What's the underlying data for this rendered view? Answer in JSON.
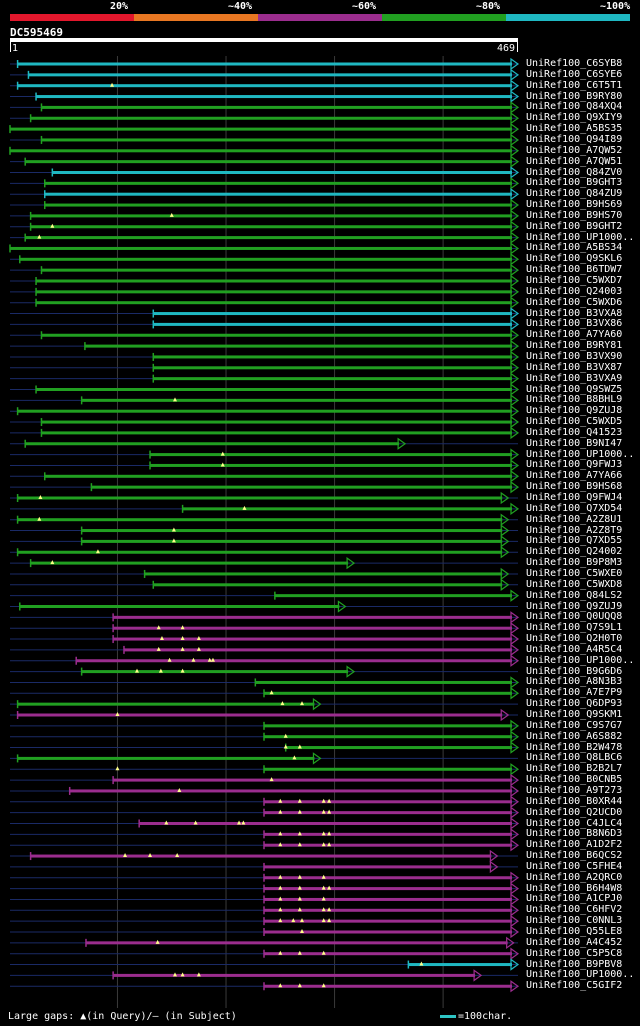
{
  "legend": {
    "bands": [
      {
        "label": "20%",
        "color": "#e2172c"
      },
      {
        "label": "~40%",
        "color": "#e87722"
      },
      {
        "label": "~60%",
        "color": "#9b2d8e"
      },
      {
        "label": "~80%",
        "color": "#21a021"
      },
      {
        "label": "~100%",
        "color": "#1fb8c2"
      }
    ]
  },
  "query": {
    "name": "DC595469",
    "start": "1",
    "end": "469"
  },
  "footer": {
    "text": "Large gaps: ▲(in Query)/– (in Subject)",
    "scale_text": "=100char."
  },
  "chart_data": {
    "type": "alignment-overview",
    "query_length": 469,
    "colors": {
      "cyan": "#1fb8c2",
      "green": "#21a021",
      "purple": "#9b2d8e",
      "backbone": "#1a2a66"
    },
    "hits": [
      {
        "label": "UniRef100_C6SYB8",
        "start": 8,
        "end": 469,
        "color": "cyan",
        "arrow": true,
        "dots": []
      },
      {
        "label": "UniRef100_C6SYE6",
        "start": 18,
        "end": 469,
        "color": "cyan",
        "arrow": true,
        "dots": []
      },
      {
        "label": "UniRef100_C6T5T1",
        "start": 8,
        "end": 469,
        "color": "cyan",
        "arrow": true,
        "dots": [
          95
        ]
      },
      {
        "label": "UniRef100_B9RY80",
        "start": 25,
        "end": 469,
        "color": "cyan",
        "arrow": true,
        "dots": []
      },
      {
        "label": "UniRef100_Q84XQ4",
        "start": 30,
        "end": 469,
        "color": "green",
        "arrow": true,
        "dots": []
      },
      {
        "label": "UniRef100_Q9XIY9",
        "start": 20,
        "end": 469,
        "color": "green",
        "arrow": true,
        "dots": []
      },
      {
        "label": "UniRef100_A5BS35",
        "start": 1,
        "end": 469,
        "color": "green",
        "arrow": true,
        "dots": []
      },
      {
        "label": "UniRef100_Q94I89",
        "start": 30,
        "end": 469,
        "color": "green",
        "arrow": true,
        "dots": []
      },
      {
        "label": "UniRef100_A7QW52",
        "start": 1,
        "end": 469,
        "color": "green",
        "arrow": true,
        "dots": []
      },
      {
        "label": "UniRef100_A7QW51",
        "start": 15,
        "end": 469,
        "color": "green",
        "arrow": true,
        "dots": []
      },
      {
        "label": "UniRef100_Q84ZV0",
        "start": 40,
        "end": 469,
        "color": "cyan",
        "arrow": true,
        "dots": []
      },
      {
        "label": "UniRef100_B9GHT3",
        "start": 33,
        "end": 469,
        "color": "green",
        "arrow": true,
        "dots": []
      },
      {
        "label": "UniRef100_Q84ZU9",
        "start": 33,
        "end": 469,
        "color": "cyan",
        "arrow": true,
        "dots": []
      },
      {
        "label": "UniRef100_B9HS69",
        "start": 33,
        "end": 469,
        "color": "green",
        "arrow": true,
        "dots": []
      },
      {
        "label": "UniRef100_B9HS70",
        "start": 20,
        "end": 469,
        "color": "green",
        "arrow": true,
        "dots": [
          150
        ]
      },
      {
        "label": "UniRef100_B9GHT2",
        "start": 20,
        "end": 469,
        "color": "green",
        "arrow": true,
        "dots": [
          40
        ]
      },
      {
        "label": "UniRef100_UP1000..",
        "start": 15,
        "end": 469,
        "color": "green",
        "arrow": true,
        "dots": [
          28
        ]
      },
      {
        "label": "UniRef100_A5BS34",
        "start": 1,
        "end": 469,
        "color": "green",
        "arrow": true,
        "dots": []
      },
      {
        "label": "UniRef100_Q9SKL6",
        "start": 10,
        "end": 469,
        "color": "green",
        "arrow": true,
        "dots": []
      },
      {
        "label": "UniRef100_B6TDW7",
        "start": 30,
        "end": 469,
        "color": "green",
        "arrow": true,
        "dots": []
      },
      {
        "label": "UniRef100_C5WXD7",
        "start": 25,
        "end": 469,
        "color": "green",
        "arrow": true,
        "dots": []
      },
      {
        "label": "UniRef100_Q24003",
        "start": 25,
        "end": 469,
        "color": "green",
        "arrow": true,
        "dots": []
      },
      {
        "label": "UniRef100_C5WXD6",
        "start": 25,
        "end": 469,
        "color": "green",
        "arrow": true,
        "dots": []
      },
      {
        "label": "UniRef100_B3VXA8",
        "start": 133,
        "end": 469,
        "color": "cyan",
        "arrow": true,
        "dots": []
      },
      {
        "label": "UniRef100_B3VX86",
        "start": 133,
        "end": 469,
        "color": "cyan",
        "arrow": true,
        "dots": []
      },
      {
        "label": "UniRef100_A7YA60",
        "start": 30,
        "end": 469,
        "color": "green",
        "arrow": true,
        "dots": []
      },
      {
        "label": "UniRef100_B9RY81",
        "start": 70,
        "end": 469,
        "color": "green",
        "arrow": true,
        "dots": []
      },
      {
        "label": "UniRef100_B3VX90",
        "start": 133,
        "end": 469,
        "color": "green",
        "arrow": true,
        "dots": []
      },
      {
        "label": "UniRef100_B3VX87",
        "start": 133,
        "end": 469,
        "color": "green",
        "arrow": true,
        "dots": []
      },
      {
        "label": "UniRef100_B3VXA9",
        "start": 133,
        "end": 469,
        "color": "green",
        "arrow": true,
        "dots": []
      },
      {
        "label": "UniRef100_Q9SWZ5",
        "start": 25,
        "end": 469,
        "color": "green",
        "arrow": true,
        "dots": []
      },
      {
        "label": "UniRef100_B8BHL9",
        "start": 67,
        "end": 469,
        "color": "green",
        "arrow": true,
        "dots": [
          153
        ]
      },
      {
        "label": "UniRef100_Q9ZUJ8",
        "start": 8,
        "end": 469,
        "color": "green",
        "arrow": true,
        "dots": []
      },
      {
        "label": "UniRef100_C5WXD5",
        "start": 30,
        "end": 469,
        "color": "green",
        "arrow": true,
        "dots": []
      },
      {
        "label": "UniRef100_Q41523",
        "start": 30,
        "end": 469,
        "color": "green",
        "arrow": true,
        "dots": []
      },
      {
        "label": "UniRef100_B9NI47",
        "start": 15,
        "end": 365,
        "color": "green",
        "arrow": true,
        "dots": []
      },
      {
        "label": "UniRef100_UP1000..",
        "start": 130,
        "end": 469,
        "color": "green",
        "arrow": true,
        "dots": [
          197
        ]
      },
      {
        "label": "UniRef100_Q9FWJ3",
        "start": 130,
        "end": 469,
        "color": "green",
        "arrow": true,
        "dots": [
          197
        ]
      },
      {
        "label": "UniRef100_A7YA66",
        "start": 33,
        "end": 469,
        "color": "green",
        "arrow": true,
        "dots": []
      },
      {
        "label": "UniRef100_B9HS68",
        "start": 76,
        "end": 469,
        "color": "green",
        "arrow": true,
        "dots": []
      },
      {
        "label": "UniRef100_Q9FWJ4",
        "start": 8,
        "end": 460,
        "color": "green",
        "arrow": true,
        "dots": [
          29
        ]
      },
      {
        "label": "UniRef100_Q7XD54",
        "start": 160,
        "end": 469,
        "color": "green",
        "arrow": true,
        "dots": [
          217
        ]
      },
      {
        "label": "UniRef100_A2Z8U1",
        "start": 8,
        "end": 460,
        "color": "green",
        "arrow": true,
        "dots": [
          28
        ]
      },
      {
        "label": "UniRef100_A2Z8T9",
        "start": 67,
        "end": 460,
        "color": "green",
        "arrow": true,
        "dots": [
          152
        ]
      },
      {
        "label": "UniRef100_Q7XD55",
        "start": 67,
        "end": 460,
        "color": "green",
        "arrow": true,
        "dots": [
          152
        ]
      },
      {
        "label": "UniRef100_Q24002",
        "start": 8,
        "end": 460,
        "color": "green",
        "arrow": true,
        "dots": [
          82
        ]
      },
      {
        "label": "UniRef100_B9P8M3",
        "start": 20,
        "end": 318,
        "color": "green",
        "arrow": true,
        "dots": [
          40
        ]
      },
      {
        "label": "UniRef100_C5WXE0",
        "start": 125,
        "end": 460,
        "color": "green",
        "arrow": true,
        "dots": []
      },
      {
        "label": "UniRef100_C5WXD8",
        "start": 133,
        "end": 460,
        "color": "green",
        "arrow": true,
        "dots": []
      },
      {
        "label": "UniRef100_Q84LS2",
        "start": 245,
        "end": 469,
        "color": "green",
        "arrow": true,
        "dots": []
      },
      {
        "label": "UniRef100_Q9ZUJ9",
        "start": 10,
        "end": 310,
        "color": "green",
        "arrow": true,
        "dots": []
      },
      {
        "label": "UniRef100_Q0UQQ8",
        "start": 96,
        "end": 469,
        "color": "purple",
        "arrow": true,
        "dots": []
      },
      {
        "label": "UniRef100_Q7S9L1",
        "start": 96,
        "end": 469,
        "color": "purple",
        "arrow": true,
        "dots": [
          138,
          160
        ]
      },
      {
        "label": "UniRef100_Q2H0T0",
        "start": 96,
        "end": 469,
        "color": "purple",
        "arrow": true,
        "dots": [
          141,
          160,
          175
        ]
      },
      {
        "label": "UniRef100_A4R5C4",
        "start": 106,
        "end": 469,
        "color": "purple",
        "arrow": true,
        "dots": [
          138,
          160,
          175
        ]
      },
      {
        "label": "UniRef100_UP1000..",
        "start": 62,
        "end": 469,
        "color": "purple",
        "arrow": true,
        "dots": [
          148,
          170,
          185,
          188
        ]
      },
      {
        "label": "UniRef100_B9G6D6",
        "start": 67,
        "end": 318,
        "color": "green",
        "arrow": true,
        "dots": [
          118,
          140,
          160
        ]
      },
      {
        "label": "UniRef100_A8N3B3",
        "start": 227,
        "end": 469,
        "color": "green",
        "arrow": true,
        "dots": []
      },
      {
        "label": "UniRef100_A7E7P9",
        "start": 235,
        "end": 469,
        "color": "green",
        "arrow": true,
        "dots": [
          242
        ]
      },
      {
        "label": "UniRef100_Q6DP93",
        "start": 8,
        "end": 287,
        "color": "green",
        "arrow": true,
        "dots": [
          252,
          270
        ]
      },
      {
        "label": "UniRef100_Q9SKM1",
        "start": 8,
        "end": 460,
        "color": "purple",
        "arrow": true,
        "dots": [
          100
        ]
      },
      {
        "label": "UniRef100_C9S7G7",
        "start": 235,
        "end": 469,
        "color": "green",
        "arrow": true,
        "dots": []
      },
      {
        "label": "UniRef100_A6S882",
        "start": 235,
        "end": 469,
        "color": "green",
        "arrow": true,
        "dots": [
          255
        ]
      },
      {
        "label": "UniRef100_B2W478",
        "start": 255,
        "end": 469,
        "color": "green",
        "arrow": true,
        "dots": [
          255,
          268
        ]
      },
      {
        "label": "UniRef100_Q8LBC6",
        "start": 8,
        "end": 287,
        "color": "green",
        "arrow": true,
        "dots": [
          263
        ]
      },
      {
        "label": "UniRef100_B2B2L7",
        "start": 235,
        "end": 469,
        "color": "green",
        "arrow": true,
        "dots": [
          100
        ]
      },
      {
        "label": "UniRef100_B0CNB5",
        "start": 96,
        "end": 469,
        "color": "purple",
        "arrow": true,
        "dots": [
          242
        ]
      },
      {
        "label": "UniRef100_A9T273",
        "start": 56,
        "end": 469,
        "color": "purple",
        "arrow": true,
        "dots": [
          157
        ]
      },
      {
        "label": "UniRef100_B0XR44",
        "start": 235,
        "end": 469,
        "color": "purple",
        "arrow": true,
        "dots": [
          250,
          268,
          290,
          295
        ]
      },
      {
        "label": "UniRef100_Q2UCD0",
        "start": 235,
        "end": 469,
        "color": "purple",
        "arrow": true,
        "dots": [
          250,
          268,
          290,
          295
        ]
      },
      {
        "label": "UniRef100_C4JLC4",
        "start": 120,
        "end": 469,
        "color": "purple",
        "arrow": true,
        "dots": [
          145,
          172,
          212,
          216
        ]
      },
      {
        "label": "UniRef100_B8N6D3",
        "start": 235,
        "end": 469,
        "color": "purple",
        "arrow": true,
        "dots": [
          250,
          268,
          290,
          295
        ]
      },
      {
        "label": "UniRef100_A1D2F2",
        "start": 235,
        "end": 469,
        "color": "purple",
        "arrow": true,
        "dots": [
          250,
          268,
          290,
          295
        ]
      },
      {
        "label": "UniRef100_B6QCS2",
        "start": 20,
        "end": 450,
        "color": "purple",
        "arrow": true,
        "dots": [
          107,
          130,
          155
        ]
      },
      {
        "label": "UniRef100_C5FHE4",
        "start": 235,
        "end": 450,
        "color": "purple",
        "arrow": true,
        "dots": []
      },
      {
        "label": "UniRef100_A2QRC0",
        "start": 235,
        "end": 469,
        "color": "purple",
        "arrow": true,
        "dots": [
          250,
          268,
          290
        ]
      },
      {
        "label": "UniRef100_B6H4W8",
        "start": 235,
        "end": 469,
        "color": "purple",
        "arrow": true,
        "dots": [
          250,
          268,
          290,
          295
        ]
      },
      {
        "label": "UniRef100_A1CPJ0",
        "start": 235,
        "end": 469,
        "color": "purple",
        "arrow": true,
        "dots": [
          250,
          268,
          290
        ]
      },
      {
        "label": "UniRef100_C6HFV2",
        "start": 235,
        "end": 469,
        "color": "purple",
        "arrow": true,
        "dots": [
          250,
          268,
          290,
          295
        ]
      },
      {
        "label": "UniRef100_C0NNL3",
        "start": 235,
        "end": 469,
        "color": "purple",
        "arrow": true,
        "dots": [
          250,
          262,
          270,
          290,
          295
        ]
      },
      {
        "label": "UniRef100_Q55LE8",
        "start": 235,
        "end": 469,
        "color": "purple",
        "arrow": true,
        "dots": [
          270
        ]
      },
      {
        "label": "UniRef100_A4C452",
        "start": 71,
        "end": 465,
        "color": "purple",
        "arrow": true,
        "dots": [
          137
        ]
      },
      {
        "label": "UniRef100_C5P5C8",
        "start": 235,
        "end": 469,
        "color": "purple",
        "arrow": true,
        "dots": [
          250,
          268,
          290
        ]
      },
      {
        "label": "UniRef100_B9PBV8",
        "start": 368,
        "end": 469,
        "color": "cyan",
        "arrow": true,
        "dots": [
          380
        ]
      },
      {
        "label": "UniRef100_UP1000..",
        "start": 96,
        "end": 435,
        "color": "purple",
        "arrow": true,
        "dots": [
          153,
          160,
          175
        ]
      },
      {
        "label": "UniRef100_C5GIF2",
        "start": 235,
        "end": 469,
        "color": "purple",
        "arrow": true,
        "dots": [
          250,
          268,
          290
        ]
      }
    ]
  }
}
